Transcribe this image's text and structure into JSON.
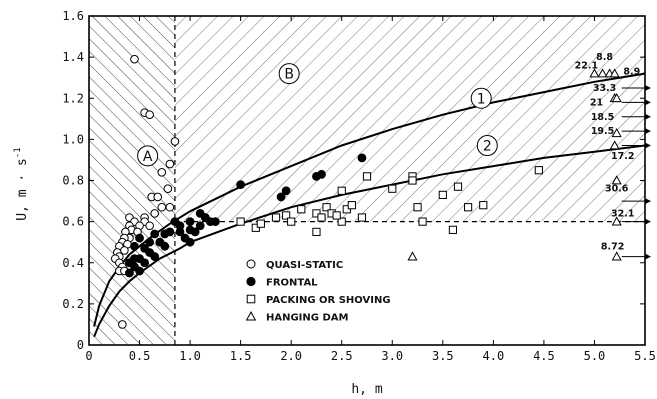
{
  "chart_data": {
    "type": "scatter",
    "title": "",
    "xlabel": "h, m",
    "ylabel": "U, m · s",
    "ylabel_exp": "-1",
    "xlim": [
      0,
      5.5
    ],
    "ylim": [
      0,
      1.6
    ],
    "xticks": [
      "0",
      "0.5",
      "1.0",
      "1.5",
      "2.0",
      "2.5",
      "3.0",
      "3.5",
      "4.0",
      "4.5",
      "5.0",
      "5.5"
    ],
    "xtick_values": [
      0,
      0.5,
      1.0,
      1.5,
      2.0,
      2.5,
      3.0,
      3.5,
      4.0,
      4.5,
      5.0,
      5.5
    ],
    "yticks": [
      "0",
      "0.2",
      "0.4",
      "0.6",
      "0.8",
      "1.0",
      "1.2",
      "1.4",
      "1.6"
    ],
    "ytick_values": [
      0,
      0.2,
      0.4,
      0.6,
      0.8,
      1.0,
      1.2,
      1.4,
      1.6
    ],
    "grid": false,
    "legend_position": "bottom-center",
    "regions": [
      {
        "label": "A",
        "x": 0.58,
        "y": 0.92
      },
      {
        "label": "B",
        "x": 1.98,
        "y": 1.32
      }
    ],
    "region_boundaries": [
      {
        "name": "vertical-boundary",
        "x": [
          0.85,
          0.85
        ],
        "y": [
          0,
          1.6
        ]
      },
      {
        "name": "horizontal-boundary",
        "x": [
          0.85,
          5.5
        ],
        "y": [
          0.6,
          0.6
        ]
      }
    ],
    "curves": [
      {
        "label": "1",
        "label_x": 3.88,
        "label_y": 1.2,
        "points": [
          [
            0.05,
            0.09
          ],
          [
            0.1,
            0.19
          ],
          [
            0.2,
            0.31
          ],
          [
            0.3,
            0.38
          ],
          [
            0.4,
            0.44
          ],
          [
            0.5,
            0.48
          ],
          [
            0.6,
            0.52
          ],
          [
            0.8,
            0.59
          ],
          [
            1.0,
            0.65
          ],
          [
            1.5,
            0.77
          ],
          [
            2.0,
            0.87
          ],
          [
            2.5,
            0.97
          ],
          [
            3.0,
            1.05
          ],
          [
            3.5,
            1.12
          ],
          [
            4.0,
            1.18
          ],
          [
            4.5,
            1.23
          ],
          [
            5.0,
            1.28
          ],
          [
            5.5,
            1.32
          ]
        ]
      },
      {
        "label": "2",
        "label_x": 3.94,
        "label_y": 0.97,
        "points": [
          [
            0.05,
            0.04
          ],
          [
            0.1,
            0.1
          ],
          [
            0.2,
            0.19
          ],
          [
            0.3,
            0.26
          ],
          [
            0.4,
            0.31
          ],
          [
            0.5,
            0.35
          ],
          [
            0.7,
            0.42
          ],
          [
            0.9,
            0.47
          ],
          [
            1.0,
            0.5
          ],
          [
            1.5,
            0.59
          ],
          [
            2.0,
            0.67
          ],
          [
            2.5,
            0.73
          ],
          [
            3.0,
            0.78
          ],
          [
            3.5,
            0.83
          ],
          [
            4.0,
            0.87
          ],
          [
            4.5,
            0.91
          ],
          [
            5.0,
            0.94
          ],
          [
            5.5,
            0.97
          ]
        ]
      }
    ],
    "series": [
      {
        "name": "QUASI-STATIC",
        "marker": "open-circle",
        "points": [
          [
            0.45,
            1.39
          ],
          [
            0.55,
            1.13
          ],
          [
            0.6,
            1.12
          ],
          [
            0.85,
            0.99
          ],
          [
            0.8,
            0.88
          ],
          [
            0.72,
            0.84
          ],
          [
            0.62,
            0.72
          ],
          [
            0.68,
            0.72
          ],
          [
            0.78,
            0.76
          ],
          [
            0.8,
            0.67
          ],
          [
            0.72,
            0.67
          ],
          [
            0.65,
            0.64
          ],
          [
            0.55,
            0.62
          ],
          [
            0.4,
            0.62
          ],
          [
            0.45,
            0.6
          ],
          [
            0.55,
            0.6
          ],
          [
            0.6,
            0.58
          ],
          [
            0.5,
            0.58
          ],
          [
            0.4,
            0.58
          ],
          [
            0.42,
            0.56
          ],
          [
            0.48,
            0.55
          ],
          [
            0.36,
            0.55
          ],
          [
            0.4,
            0.52
          ],
          [
            0.35,
            0.52
          ],
          [
            0.33,
            0.5
          ],
          [
            0.38,
            0.49
          ],
          [
            0.3,
            0.48
          ],
          [
            0.35,
            0.46
          ],
          [
            0.28,
            0.45
          ],
          [
            0.3,
            0.43
          ],
          [
            0.26,
            0.42
          ],
          [
            0.3,
            0.4
          ],
          [
            0.33,
            0.38
          ],
          [
            0.3,
            0.36
          ],
          [
            0.35,
            0.36
          ],
          [
            0.33,
            0.1
          ]
        ]
      },
      {
        "name": "FRONTAL",
        "marker": "filled-circle",
        "points": [
          [
            0.4,
            0.35
          ],
          [
            0.45,
            0.38
          ],
          [
            0.5,
            0.36
          ],
          [
            0.4,
            0.4
          ],
          [
            0.45,
            0.42
          ],
          [
            0.5,
            0.42
          ],
          [
            0.55,
            0.4
          ],
          [
            0.6,
            0.45
          ],
          [
            0.65,
            0.43
          ],
          [
            0.55,
            0.47
          ],
          [
            0.45,
            0.48
          ],
          [
            0.6,
            0.5
          ],
          [
            0.7,
            0.5
          ],
          [
            0.75,
            0.48
          ],
          [
            0.5,
            0.52
          ],
          [
            0.65,
            0.54
          ],
          [
            0.75,
            0.54
          ],
          [
            0.8,
            0.55
          ],
          [
            0.9,
            0.55
          ],
          [
            0.95,
            0.52
          ],
          [
            1.0,
            0.56
          ],
          [
            1.05,
            0.55
          ],
          [
            1.1,
            0.58
          ],
          [
            1.0,
            0.6
          ],
          [
            0.9,
            0.58
          ],
          [
            0.85,
            0.6
          ],
          [
            1.2,
            0.6
          ],
          [
            1.15,
            0.62
          ],
          [
            1.1,
            0.64
          ],
          [
            1.25,
            0.6
          ],
          [
            1.0,
            0.5
          ],
          [
            1.5,
            0.78
          ],
          [
            1.9,
            0.72
          ],
          [
            1.95,
            0.75
          ],
          [
            2.25,
            0.82
          ],
          [
            2.3,
            0.83
          ],
          [
            2.7,
            0.91
          ]
        ]
      },
      {
        "name": "PACKING OR SHOVING",
        "marker": "open-square",
        "points": [
          [
            1.5,
            0.6
          ],
          [
            1.65,
            0.57
          ],
          [
            1.7,
            0.59
          ],
          [
            1.85,
            0.62
          ],
          [
            1.95,
            0.63
          ],
          [
            2.0,
            0.6
          ],
          [
            2.25,
            0.64
          ],
          [
            2.25,
            0.55
          ],
          [
            2.3,
            0.62
          ],
          [
            2.35,
            0.67
          ],
          [
            2.4,
            0.64
          ],
          [
            2.5,
            0.6
          ],
          [
            2.55,
            0.66
          ],
          [
            2.6,
            0.68
          ],
          [
            2.7,
            0.62
          ],
          [
            2.5,
            0.75
          ],
          [
            2.75,
            0.82
          ],
          [
            3.0,
            0.76
          ],
          [
            3.2,
            0.82
          ],
          [
            3.2,
            0.8
          ],
          [
            3.25,
            0.67
          ],
          [
            3.3,
            0.6
          ],
          [
            3.5,
            0.73
          ],
          [
            3.6,
            0.56
          ],
          [
            3.65,
            0.77
          ],
          [
            3.75,
            0.67
          ],
          [
            3.9,
            0.68
          ],
          [
            4.45,
            0.85
          ],
          [
            2.45,
            0.63
          ],
          [
            2.1,
            0.66
          ]
        ]
      },
      {
        "name": "HANGING DAM",
        "marker": "open-triangle",
        "points": [
          [
            3.2,
            0.43
          ],
          [
            5.0,
            1.32
          ],
          [
            5.08,
            1.32
          ],
          [
            5.15,
            1.32
          ],
          [
            5.2,
            1.32
          ],
          [
            5.2,
            1.2
          ],
          [
            5.22,
            1.2
          ],
          [
            5.22,
            1.03
          ],
          [
            5.2,
            0.97
          ],
          [
            5.22,
            0.8
          ],
          [
            5.22,
            0.6
          ],
          [
            5.22,
            0.43
          ]
        ]
      }
    ],
    "annotations": [
      {
        "text": "8.8",
        "x": 5.1,
        "y": 1.4
      },
      {
        "text": "22.1",
        "x": 4.92,
        "y": 1.36
      },
      {
        "text": "8.9",
        "x": 5.37,
        "y": 1.33
      },
      {
        "text": "33.3",
        "x": 5.1,
        "y": 1.25
      },
      {
        "text": "21",
        "x": 5.02,
        "y": 1.18
      },
      {
        "text": "18.5",
        "x": 5.08,
        "y": 1.11
      },
      {
        "text": "19.5",
        "x": 5.08,
        "y": 1.04
      },
      {
        "text": "17.2",
        "x": 5.28,
        "y": 0.92
      },
      {
        "text": "30.6",
        "x": 5.22,
        "y": 0.76
      },
      {
        "text": "32.1",
        "x": 5.28,
        "y": 0.64
      },
      {
        "text": "8.72",
        "x": 5.18,
        "y": 0.48
      }
    ],
    "offscale_arrows": [
      {
        "y": 1.25
      },
      {
        "y": 1.18
      },
      {
        "y": 1.11
      },
      {
        "y": 1.04
      },
      {
        "y": 0.97
      },
      {
        "y": 0.7
      },
      {
        "y": 0.6
      },
      {
        "y": 0.43
      }
    ]
  }
}
